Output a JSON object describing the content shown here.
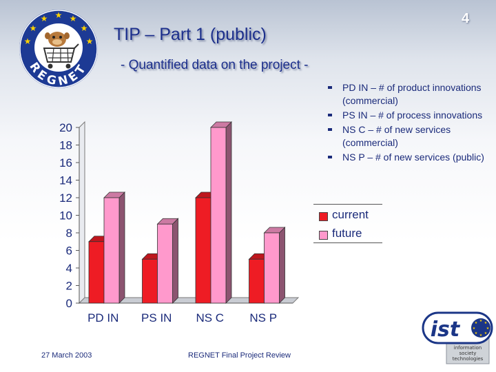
{
  "slide": {
    "title": "TIP – Part 1 (public)",
    "subtitle": "- Quantified data on the project -",
    "page_number": "4"
  },
  "bullets": [
    "PD IN – # of product innovations (commercial)",
    "PS IN – # of process innovations",
    "NS C – # of new services (commercial)",
    "NS P – # of new services (public)"
  ],
  "logo": {
    "lettering": "REGNET",
    "icon": "mascot-with-shopping-cart-icon"
  },
  "ist_logo": {
    "mark": "ist",
    "caption_lines": [
      "information",
      "society",
      "technologies"
    ]
  },
  "chart_data": {
    "type": "bar",
    "categories": [
      "PD IN",
      "PS IN",
      "NS C",
      "NS P"
    ],
    "series": [
      {
        "name": "current",
        "values": [
          7,
          5,
          12,
          5
        ],
        "color": "#ee1c24"
      },
      {
        "name": "future",
        "values": [
          12,
          9,
          20,
          8
        ],
        "color": "#ff99cc"
      }
    ],
    "ylim": [
      0,
      20
    ],
    "yticks": [
      0,
      2,
      4,
      6,
      8,
      10,
      12,
      14,
      16,
      18,
      20
    ],
    "grid": false,
    "three_d": true,
    "legend_position": "right"
  },
  "footer": {
    "date": "27 March 2003",
    "center": "REGNET Final Project Review"
  }
}
